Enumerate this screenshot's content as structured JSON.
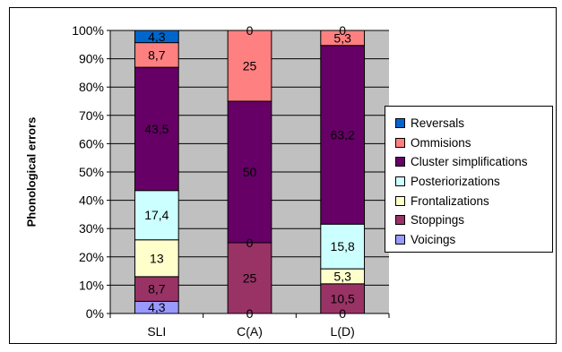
{
  "chart_data": {
    "type": "bar",
    "stacked": true,
    "percent_stacked": true,
    "title": "",
    "xlabel": "",
    "ylabel": "Phonological errors",
    "ylim": [
      0,
      100
    ],
    "y_ticks": [
      "0%",
      "10%",
      "20%",
      "30%",
      "40%",
      "50%",
      "60%",
      "70%",
      "80%",
      "90%",
      "100%"
    ],
    "categories": [
      "SLI",
      "C(A)",
      "L(D)"
    ],
    "grid": true,
    "plot_background": "#C0C0C0",
    "legend_position": "right",
    "series": [
      {
        "name": "Voicings",
        "color": "#9999FF",
        "values": [
          4.3,
          0,
          0
        ],
        "labels": [
          "4,3",
          "0",
          "0"
        ]
      },
      {
        "name": "Stoppings",
        "color": "#993366",
        "values": [
          8.7,
          25,
          10.5
        ],
        "labels": [
          "8,7",
          "25",
          "10,5"
        ]
      },
      {
        "name": "Frontalizations",
        "color": "#FFFFCC",
        "values": [
          13,
          0,
          5.3
        ],
        "labels": [
          "13",
          "0",
          "5,3"
        ]
      },
      {
        "name": "Posteriorizations",
        "color": "#CCFFFF",
        "values": [
          17.4,
          0,
          15.8
        ],
        "labels": [
          "17,4",
          "",
          "15,8"
        ]
      },
      {
        "name": "Cluster simplifications",
        "color": "#660066",
        "values": [
          43.5,
          50,
          63.2
        ],
        "labels": [
          "43,5",
          "50",
          "63,2"
        ]
      },
      {
        "name": "Ommisions",
        "color": "#FF8080",
        "values": [
          8.7,
          25,
          5.3
        ],
        "labels": [
          "8,7",
          "25",
          "5,3"
        ]
      },
      {
        "name": "Reversals",
        "color": "#0066CC",
        "values": [
          4.3,
          0,
          0
        ],
        "labels": [
          "4,3",
          "0",
          "0"
        ]
      }
    ]
  }
}
